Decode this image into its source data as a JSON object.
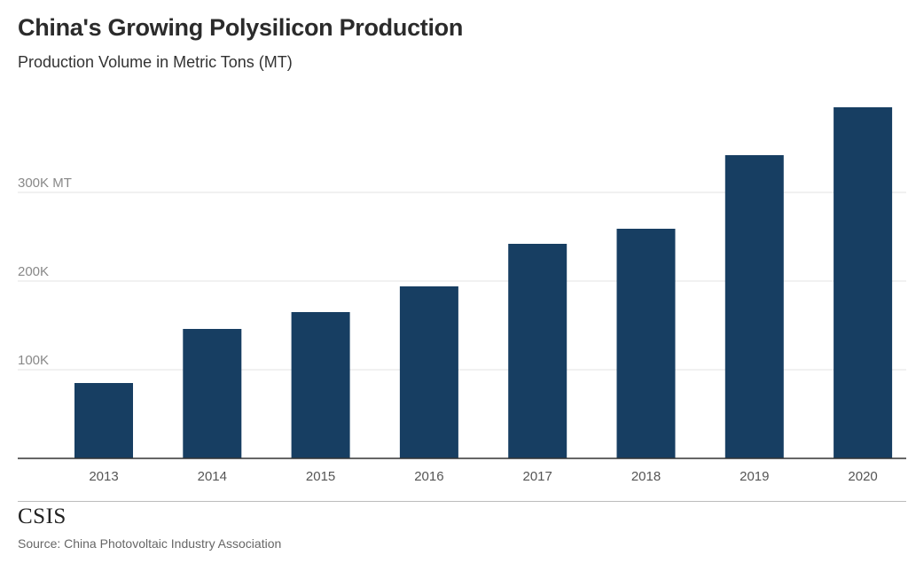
{
  "chart_data": {
    "type": "bar",
    "title": "China's Growing Polysilicon Production",
    "subtitle": "Production Volume in Metric Tons (MT)",
    "categories": [
      "2013",
      "2014",
      "2015",
      "2016",
      "2017",
      "2018",
      "2019",
      "2020"
    ],
    "values": [
      85000,
      146000,
      165000,
      194000,
      242000,
      259000,
      342000,
      396000
    ],
    "ylim": [
      0,
      400000
    ],
    "yticks": [
      {
        "value": 100000,
        "label": "100K"
      },
      {
        "value": 200000,
        "label": "200K"
      },
      {
        "value": 300000,
        "label": "300K MT"
      }
    ],
    "bar_color": "#173e62",
    "grid": true,
    "legend": "none"
  },
  "footer": {
    "logo": "CSIS",
    "source": "Source: China Photovoltaic Industry Association"
  }
}
